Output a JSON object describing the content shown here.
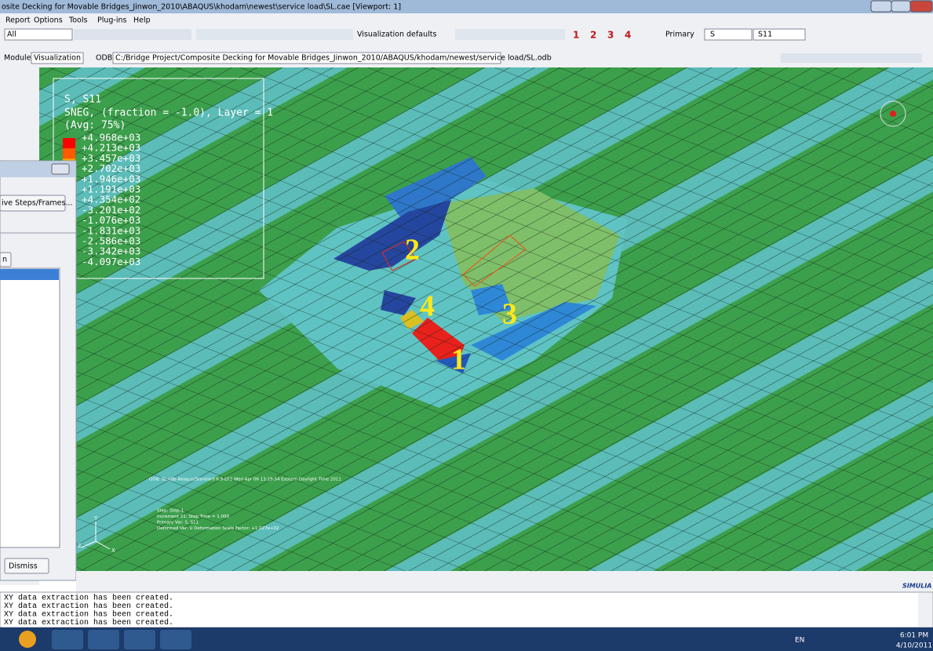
{
  "window": {
    "title": "osite Decking for Movable Bridges_Jinwon_2010\\ABAQUS\\khodam\\newest\\service load\\SL.cae [Viewport: 1]",
    "menu": [
      "Report",
      "Options",
      "Tools",
      "Plug-ins",
      "Help"
    ]
  },
  "toolbar": {
    "selection": "All",
    "visualization": "Visualization defaults",
    "views": [
      "1",
      "2",
      "3",
      "4"
    ],
    "primary": "Primary",
    "variable": "S",
    "component": "S11"
  },
  "context": {
    "module_label": "Module:",
    "module": "Visualization",
    "odb_label": "ODB:",
    "odb": "C:/Bridge Project/Composite Decking for Movable Bridges_Jinwon_2010/ABAQUS/khodam/newest/service load/SL.odb"
  },
  "legend": {
    "title": "S, S11",
    "subtitle": "SNEG, (fraction = -1.0), Layer = 1",
    "average": "(Avg: 75%)",
    "labels": [
      "+4.968e+03",
      "+4.213e+03",
      "+3.457e+03",
      "+2.702e+03",
      "+1.946e+03",
      "+1.191e+03",
      "+4.354e+02",
      "-3.201e+02",
      "-1.076e+03",
      "-1.831e+03",
      "-2.586e+03",
      "-3.342e+03",
      "-4.097e+03"
    ]
  },
  "viewport": {
    "callouts": [
      "1",
      "2",
      "3",
      "4"
    ],
    "odb_info": "ODB: SL.odb    Abaqus/Standard 6.9-EF2    Wed Apr 06 13:19:54 Eastern Daylight Time 2011",
    "step_info": [
      "Step: Step-1",
      "Increment     21: Step Time =    1.000",
      "Primary Var: S, S11",
      "Deformed Var: U   Deformation Scale Factor: +1.027e+02"
    ],
    "triad": [
      "Y",
      "Z",
      "X"
    ]
  },
  "dialog": {
    "button": "ive Steps/Frames...",
    "tab": "n",
    "dismiss": "Dismiss"
  },
  "brand": "SIMULIA",
  "messages": [
    "XY data extraction has been created.",
    "XY data extraction has been created.",
    "XY data extraction has been created.",
    "XY data extraction has been created."
  ],
  "taskbar": {
    "language": "EN",
    "time": "6:01 PM",
    "date": "4/10/2011"
  }
}
